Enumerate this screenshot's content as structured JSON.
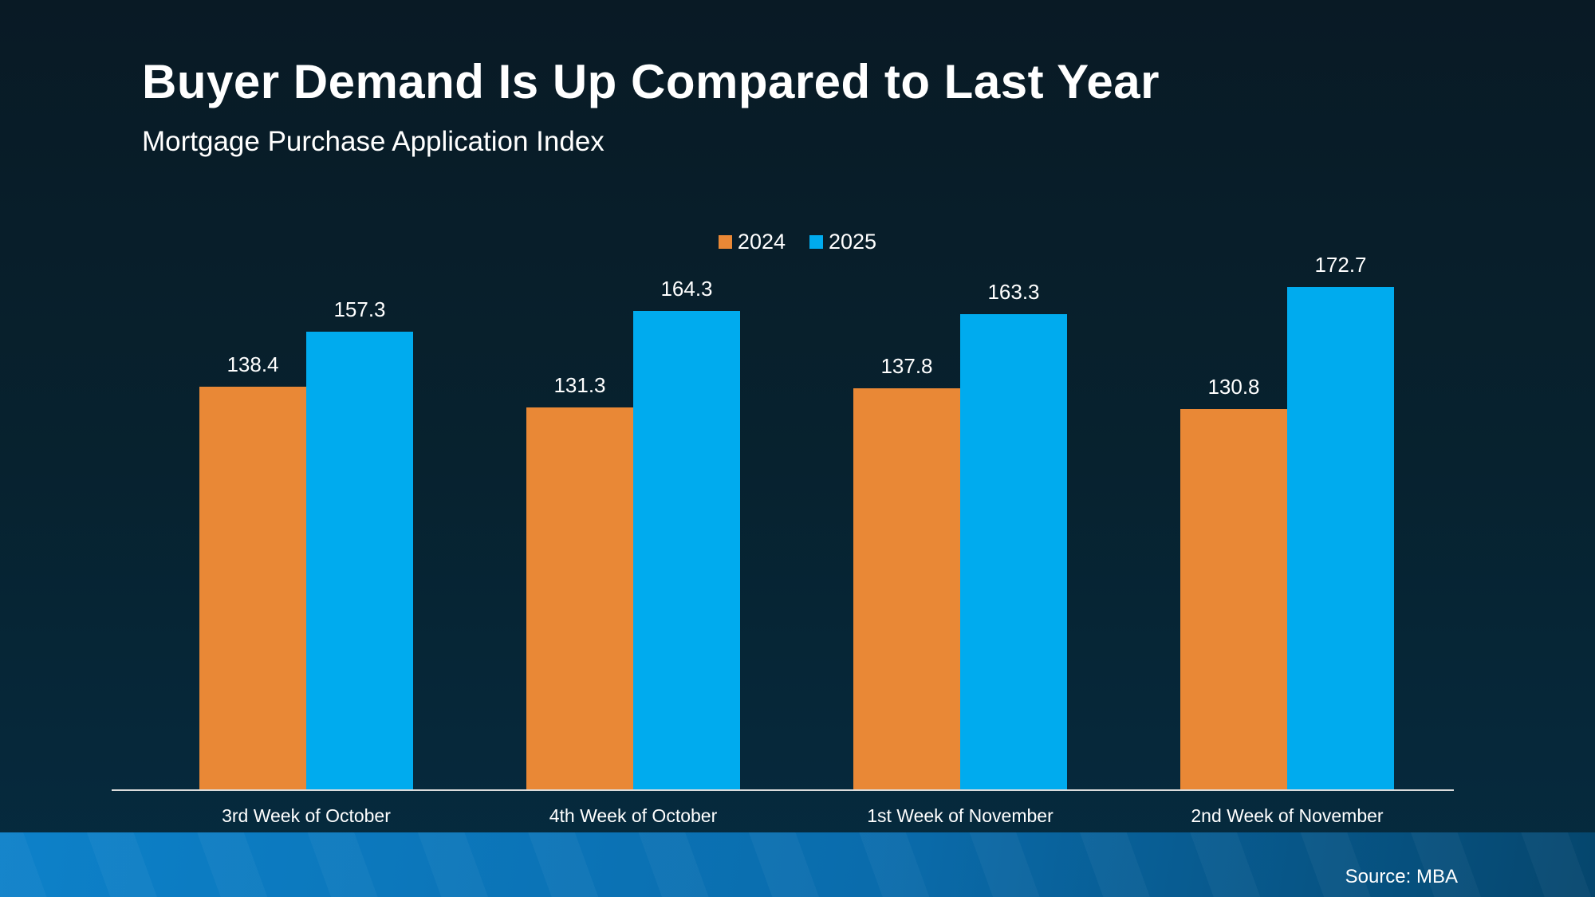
{
  "header": {
    "title": "Buyer Demand Is Up Compared to Last Year",
    "subtitle": "Mortgage Purchase Application Index"
  },
  "chart_data": {
    "type": "bar",
    "title": "Buyer Demand Is Up Compared to Last Year",
    "subtitle": "Mortgage Purchase Application Index",
    "categories": [
      "3rd Week of October",
      "4th Week of October",
      "1st Week of November",
      "2nd Week of November"
    ],
    "series": [
      {
        "name": "2024",
        "color": "#E98836",
        "values": [
          138.4,
          131.3,
          137.8,
          130.8
        ]
      },
      {
        "name": "2025",
        "color": "#00ABEE",
        "values": [
          157.3,
          164.3,
          163.3,
          172.7
        ]
      }
    ],
    "ylim": [
      0,
      190
    ],
    "grid": false,
    "data_labels": true,
    "legend_position": "top-center",
    "xlabel": "",
    "ylabel": ""
  },
  "footer": {
    "source_label": "Source: MBA"
  },
  "colors": {
    "background_top": "#091a25",
    "background_bottom": "#052b40",
    "series_2024": "#E98836",
    "series_2025": "#00ABEE",
    "axis_line": "#dcdcdc",
    "footer_left": "#0d81c9",
    "footer_right": "#05466d",
    "text": "#ffffff"
  }
}
